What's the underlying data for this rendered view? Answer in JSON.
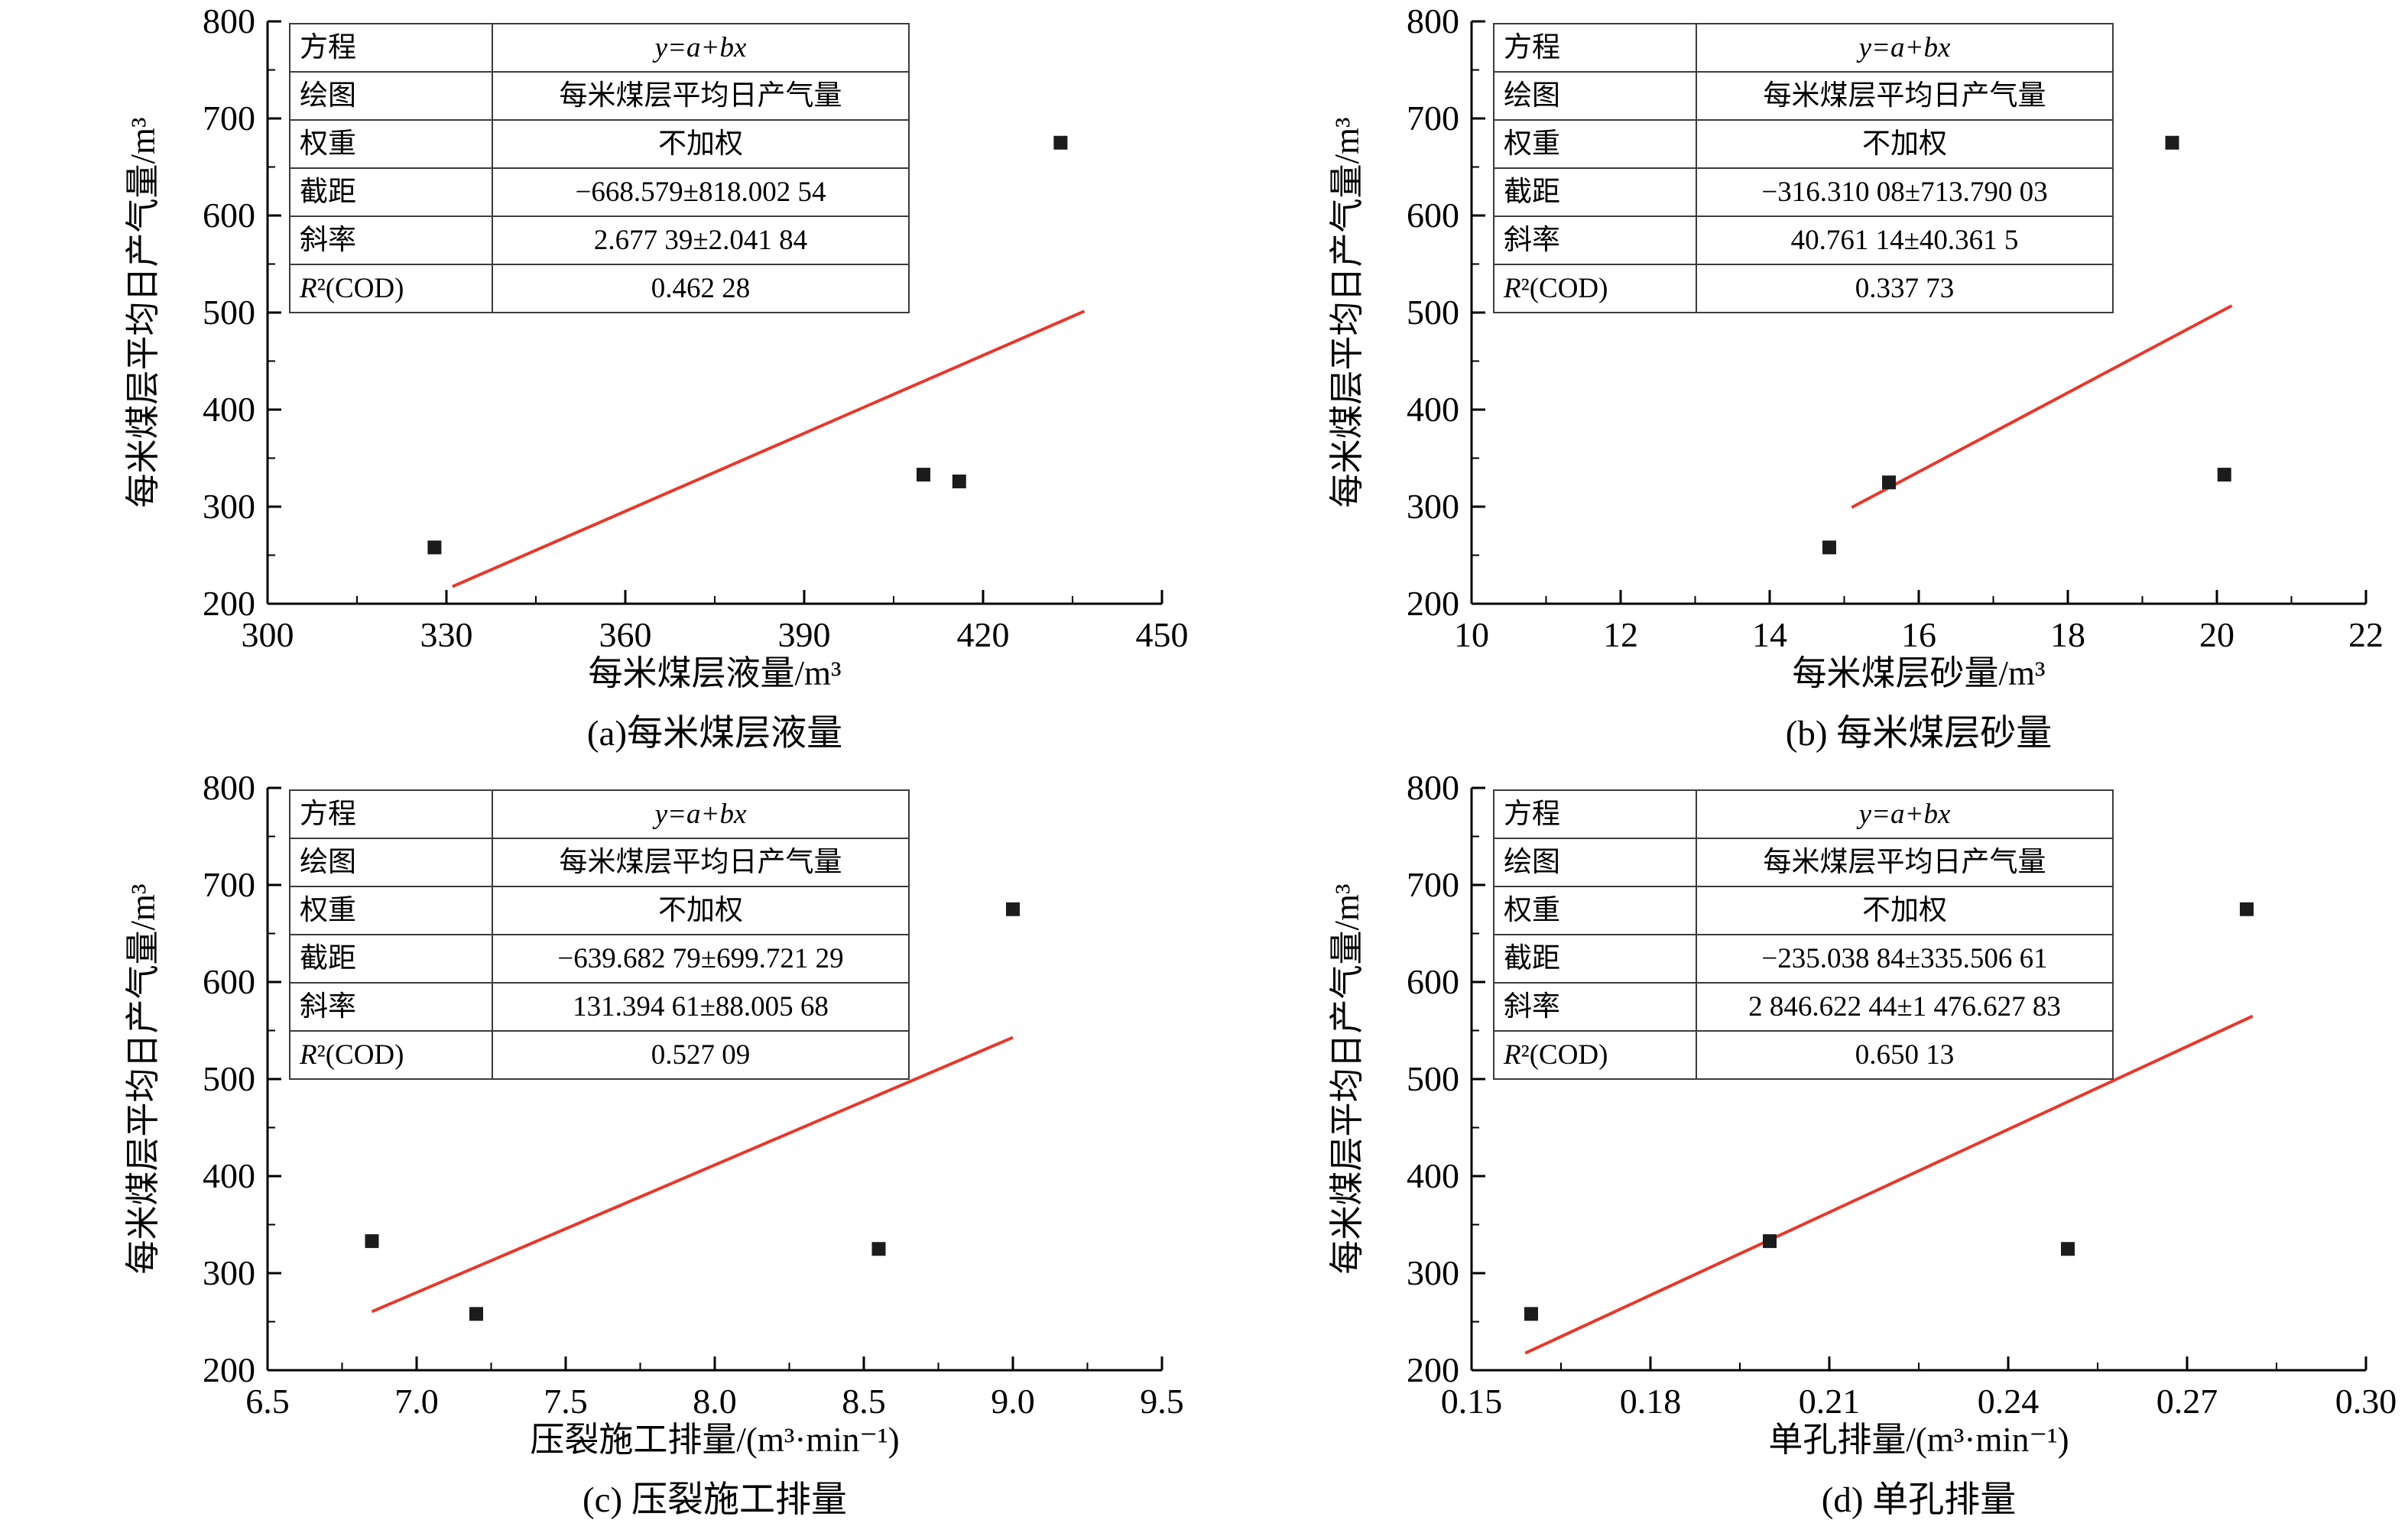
{
  "page": {
    "background": "#ffffff",
    "axis_color": "#000000",
    "text_color": "#000000",
    "point_color": "#1c1c1c",
    "fit_line_color": "#e8372b"
  },
  "table_labels": {
    "equation": "方程",
    "plot": "绘图",
    "weight": "权重",
    "intercept": "截距",
    "slope": "斜率",
    "r2": "R²(COD)"
  },
  "chart_data": [
    {
      "type": "scatter",
      "caption": "(a)每米煤层液量",
      "xlabel": "每米煤层液量/m³",
      "ylabel": "每米煤层平均日产气量/m³",
      "xlim": [
        300,
        450
      ],
      "ylim": [
        200,
        800
      ],
      "xticks": [
        "300",
        "330",
        "360",
        "390",
        "420",
        "450"
      ],
      "yticks": [
        "200",
        "300",
        "400",
        "500",
        "600",
        "700",
        "800"
      ],
      "points": [
        [
          328,
          258
        ],
        [
          410,
          333
        ],
        [
          416,
          326
        ],
        [
          433,
          675
        ]
      ],
      "fit": {
        "slope": 2.67739,
        "intercept": -668.579,
        "x_range": [
          331,
          437
        ]
      },
      "table": {
        "equation": "y=a+bx",
        "plot": "每米煤层平均日产气量",
        "weight": "不加权",
        "intercept": "−668.579±818.002 54",
        "slope": "2.677 39±2.041 84",
        "r2": "0.462 28"
      }
    },
    {
      "type": "scatter",
      "caption": "(b) 每米煤层砂量",
      "xlabel": "每米煤层砂量/m³",
      "ylabel": "每米煤层平均日产气量/m³",
      "xlim": [
        10,
        22
      ],
      "ylim": [
        200,
        800
      ],
      "xticks": [
        "10",
        "12",
        "14",
        "16",
        "18",
        "20",
        "22"
      ],
      "yticks": [
        "200",
        "300",
        "400",
        "500",
        "600",
        "700",
        "800"
      ],
      "points": [
        [
          14.8,
          258
        ],
        [
          15.6,
          325
        ],
        [
          19.4,
          675
        ],
        [
          20.1,
          333
        ]
      ],
      "fit": {
        "slope": 40.76114,
        "intercept": -316.31008,
        "x_range": [
          15.1,
          20.2
        ]
      },
      "table": {
        "equation": "y=a+bx",
        "plot": "每米煤层平均日产气量",
        "weight": "不加权",
        "intercept": "−316.310 08±713.790 03",
        "slope": "40.761 14±40.361 5",
        "r2": "0.337 73"
      }
    },
    {
      "type": "scatter",
      "caption": "(c) 压裂施工排量",
      "xlabel": "压裂施工排量/(m³·min⁻¹)",
      "ylabel": "每米煤层平均日产气量/m³",
      "xlim": [
        6.5,
        9.5
      ],
      "ylim": [
        200,
        800
      ],
      "xticks": [
        "6.5",
        "7.0",
        "7.5",
        "8.0",
        "8.5",
        "9.0",
        "9.5"
      ],
      "yticks": [
        "200",
        "300",
        "400",
        "500",
        "600",
        "700",
        "800"
      ],
      "points": [
        [
          6.85,
          333
        ],
        [
          7.2,
          258
        ],
        [
          8.55,
          325
        ],
        [
          9.0,
          675
        ]
      ],
      "fit": {
        "slope": 131.39461,
        "intercept": -639.68279,
        "x_range": [
          6.85,
          9.0
        ]
      },
      "table": {
        "equation": "y=a+bx",
        "plot": "每米煤层平均日产气量",
        "weight": "不加权",
        "intercept": "−639.682 79±699.721 29",
        "slope": "131.394 61±88.005 68",
        "r2": "0.527 09"
      }
    },
    {
      "type": "scatter",
      "caption": "(d) 单孔排量",
      "xlabel": "单孔排量/(m³·min⁻¹)",
      "ylabel": "每米煤层平均日产气量/m³",
      "xlim": [
        0.15,
        0.3
      ],
      "ylim": [
        200,
        800
      ],
      "xticks": [
        "0.15",
        "0.18",
        "0.21",
        "0.24",
        "0.27",
        "0.30"
      ],
      "yticks": [
        "200",
        "300",
        "400",
        "500",
        "600",
        "700",
        "800"
      ],
      "points": [
        [
          0.16,
          258
        ],
        [
          0.2,
          333
        ],
        [
          0.25,
          325
        ],
        [
          0.28,
          675
        ]
      ],
      "fit": {
        "slope": 2846.62244,
        "intercept": -235.03884,
        "x_range": [
          0.159,
          0.281
        ]
      },
      "table": {
        "equation": "y=a+bx",
        "plot": "每米煤层平均日产气量",
        "weight": "不加权",
        "intercept": "−235.038 84±335.506 61",
        "slope": "2 846.622 44±1 476.627 83",
        "r2": "0.650 13"
      }
    }
  ]
}
